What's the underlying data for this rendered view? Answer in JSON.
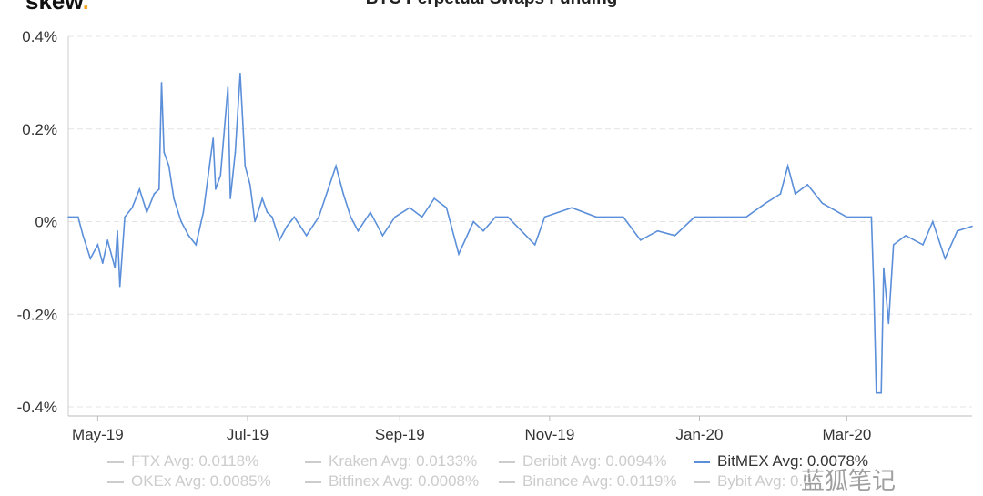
{
  "header": {
    "logo_text": "skew",
    "logo_dot": ".",
    "title": "BTC Perpetual Swaps Funding"
  },
  "watermark": "蓝狐笔记",
  "chart_data": {
    "type": "line",
    "title": "BTC Perpetual Swaps Funding",
    "xlabel": "",
    "ylabel": "",
    "ylim": [
      -0.4,
      0.4
    ],
    "yticks": [
      0.4,
      0.2,
      0,
      -0.2,
      -0.4
    ],
    "ytick_labels": [
      "0.4%",
      "0.2%",
      "0%",
      "-0.2%",
      "-0.4%"
    ],
    "xlim": [
      "2019-04-19",
      "2020-04-21"
    ],
    "xticks": [
      "2019-05-01",
      "2019-07-01",
      "2019-09-01",
      "2019-11-01",
      "2020-01-01",
      "2020-03-01"
    ],
    "xtick_labels": [
      "May-19",
      "Jul-19",
      "Sep-19",
      "Nov-19",
      "Jan-20",
      "Mar-20"
    ],
    "grid": true,
    "legend_placement": "bottom",
    "color": "#5b8fd9",
    "series": [
      {
        "name": "BitMEX",
        "points": [
          [
            "2019-04-19",
            0.01
          ],
          [
            "2019-04-23",
            0.01
          ],
          [
            "2019-04-25",
            -0.03
          ],
          [
            "2019-04-28",
            -0.08
          ],
          [
            "2019-05-01",
            -0.05
          ],
          [
            "2019-05-03",
            -0.09
          ],
          [
            "2019-05-05",
            -0.04
          ],
          [
            "2019-05-08",
            -0.1
          ],
          [
            "2019-05-09",
            -0.02
          ],
          [
            "2019-05-10",
            -0.14
          ],
          [
            "2019-05-12",
            0.01
          ],
          [
            "2019-05-15",
            0.03
          ],
          [
            "2019-05-18",
            0.07
          ],
          [
            "2019-05-21",
            0.02
          ],
          [
            "2019-05-24",
            0.06
          ],
          [
            "2019-05-26",
            0.07
          ],
          [
            "2019-05-27",
            0.3
          ],
          [
            "2019-05-28",
            0.15
          ],
          [
            "2019-05-30",
            0.12
          ],
          [
            "2019-06-01",
            0.05
          ],
          [
            "2019-06-04",
            0.0
          ],
          [
            "2019-06-07",
            -0.03
          ],
          [
            "2019-06-10",
            -0.05
          ],
          [
            "2019-06-13",
            0.02
          ],
          [
            "2019-06-17",
            0.18
          ],
          [
            "2019-06-18",
            0.07
          ],
          [
            "2019-06-20",
            0.1
          ],
          [
            "2019-06-23",
            0.29
          ],
          [
            "2019-06-24",
            0.05
          ],
          [
            "2019-06-26",
            0.15
          ],
          [
            "2019-06-28",
            0.32
          ],
          [
            "2019-06-30",
            0.12
          ],
          [
            "2019-07-02",
            0.08
          ],
          [
            "2019-07-04",
            0.0
          ],
          [
            "2019-07-07",
            0.05
          ],
          [
            "2019-07-09",
            0.02
          ],
          [
            "2019-07-11",
            0.01
          ],
          [
            "2019-07-14",
            -0.04
          ],
          [
            "2019-07-17",
            -0.01
          ],
          [
            "2019-07-20",
            0.01
          ],
          [
            "2019-07-25",
            -0.03
          ],
          [
            "2019-07-30",
            0.01
          ],
          [
            "2019-08-06",
            0.12
          ],
          [
            "2019-08-09",
            0.06
          ],
          [
            "2019-08-12",
            0.01
          ],
          [
            "2019-08-15",
            -0.02
          ],
          [
            "2019-08-20",
            0.02
          ],
          [
            "2019-08-25",
            -0.03
          ],
          [
            "2019-08-30",
            0.01
          ],
          [
            "2019-09-05",
            0.03
          ],
          [
            "2019-09-10",
            0.01
          ],
          [
            "2019-09-15",
            0.05
          ],
          [
            "2019-09-20",
            0.03
          ],
          [
            "2019-09-25",
            -0.07
          ],
          [
            "2019-10-01",
            0.0
          ],
          [
            "2019-10-05",
            -0.02
          ],
          [
            "2019-10-10",
            0.01
          ],
          [
            "2019-10-15",
            0.01
          ],
          [
            "2019-10-26",
            -0.05
          ],
          [
            "2019-10-30",
            0.01
          ],
          [
            "2019-11-10",
            0.03
          ],
          [
            "2019-11-20",
            0.01
          ],
          [
            "2019-12-01",
            0.01
          ],
          [
            "2019-12-08",
            -0.04
          ],
          [
            "2019-12-15",
            -0.02
          ],
          [
            "2019-12-22",
            -0.03
          ],
          [
            "2019-12-30",
            0.01
          ],
          [
            "2020-01-20",
            0.01
          ],
          [
            "2020-01-28",
            0.04
          ],
          [
            "2020-02-03",
            0.06
          ],
          [
            "2020-02-06",
            0.12
          ],
          [
            "2020-02-09",
            0.06
          ],
          [
            "2020-02-14",
            0.08
          ],
          [
            "2020-02-20",
            0.04
          ],
          [
            "2020-03-01",
            0.01
          ],
          [
            "2020-03-11",
            0.01
          ],
          [
            "2020-03-12",
            -0.15
          ],
          [
            "2020-03-13",
            -0.37
          ],
          [
            "2020-03-15",
            -0.37
          ],
          [
            "2020-03-16",
            -0.1
          ],
          [
            "2020-03-18",
            -0.22
          ],
          [
            "2020-03-20",
            -0.05
          ],
          [
            "2020-03-25",
            -0.03
          ],
          [
            "2020-04-01",
            -0.05
          ],
          [
            "2020-04-05",
            0.0
          ],
          [
            "2020-04-10",
            -0.08
          ],
          [
            "2020-04-15",
            -0.02
          ],
          [
            "2020-04-21",
            -0.01
          ]
        ]
      }
    ]
  },
  "legend": [
    {
      "name": "FTX",
      "avg": "Avg: 0.0118%",
      "active": false
    },
    {
      "name": "Kraken",
      "avg": "Avg: 0.0133%",
      "active": false
    },
    {
      "name": "Deribit",
      "avg": "Avg: 0.0094%",
      "active": false
    },
    {
      "name": "BitMEX",
      "avg": "Avg: 0.0078%",
      "active": true
    },
    {
      "name": "OKEx",
      "avg": "Avg: 0.0085%",
      "active": false
    },
    {
      "name": "Bitfinex",
      "avg": "Avg: 0.0008%",
      "active": false
    },
    {
      "name": "Binance",
      "avg": "Avg: 0.0119%",
      "active": false
    },
    {
      "name": "Bybit",
      "avg": "Avg: 0.0",
      "active": false
    }
  ]
}
